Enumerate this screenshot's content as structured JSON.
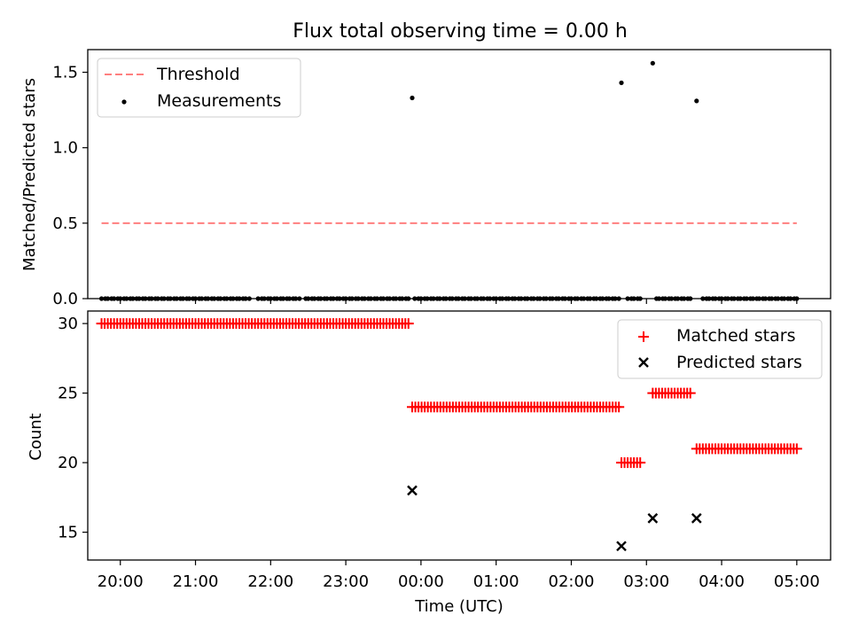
{
  "title": "Flux total observing time = 0.00 h",
  "chart_data": [
    {
      "type": "scatter",
      "ylabel": "Matched/Predicted stars",
      "xlabel": "",
      "ylim": [
        0.0,
        1.65
      ],
      "yticks": [
        "0.0",
        "0.5",
        "1.0",
        "1.5"
      ],
      "xlim": [
        "19:34",
        "05:27"
      ],
      "grid": false,
      "legend_position": "upper-left",
      "series": [
        {
          "name": "Threshold",
          "kind": "line",
          "style": "dashed",
          "color": "#ff7f7f",
          "x_start": "19:45",
          "x_end": "05:00",
          "y": 0.5
        },
        {
          "name": "Measurements",
          "kind": "points",
          "color": "#000000",
          "x": [
            "19:45",
            "19:48",
            "19:50",
            "19:53",
            "19:55",
            "19:58",
            "20:00",
            "20:03",
            "20:05",
            "20:08",
            "20:10",
            "20:13",
            "20:15",
            "20:18",
            "20:20",
            "20:23",
            "20:25",
            "20:28",
            "20:30",
            "20:33",
            "20:35",
            "20:38",
            "20:40",
            "20:43",
            "20:45",
            "20:48",
            "20:50",
            "20:53",
            "20:55",
            "20:58",
            "21:00",
            "21:03",
            "21:05",
            "21:08",
            "21:10",
            "21:13",
            "21:15",
            "21:18",
            "21:20",
            "21:23",
            "21:25",
            "21:28",
            "21:30",
            "21:33",
            "21:35",
            "21:38",
            "21:40",
            "21:43",
            "21:50",
            "21:53",
            "21:55",
            "21:58",
            "22:00",
            "22:03",
            "22:05",
            "22:08",
            "22:10",
            "22:13",
            "22:15",
            "22:18",
            "22:20",
            "22:23",
            "22:28",
            "22:30",
            "22:33",
            "22:35",
            "22:38",
            "22:40",
            "22:43",
            "22:45",
            "22:48",
            "22:50",
            "22:53",
            "22:55",
            "22:58",
            "23:00",
            "23:03",
            "23:05",
            "23:08",
            "23:10",
            "23:13",
            "23:15",
            "23:18",
            "23:20",
            "23:23",
            "23:25",
            "23:28",
            "23:30",
            "23:33",
            "23:35",
            "23:38",
            "23:40",
            "23:43",
            "23:45",
            "23:48",
            "23:50",
            "23:55",
            "23:58",
            "00:00",
            "00:03",
            "00:05",
            "00:08",
            "00:10",
            "00:13",
            "00:15",
            "00:18",
            "00:20",
            "00:23",
            "00:25",
            "00:28",
            "00:30",
            "00:33",
            "00:35",
            "00:38",
            "00:40",
            "00:43",
            "00:45",
            "00:48",
            "00:50",
            "00:53",
            "00:55",
            "00:58",
            "01:00",
            "01:03",
            "01:05",
            "01:08",
            "01:10",
            "01:13",
            "01:15",
            "01:18",
            "01:20",
            "01:23",
            "01:25",
            "01:28",
            "01:30",
            "01:33",
            "01:35",
            "01:38",
            "01:40",
            "01:43",
            "01:45",
            "01:48",
            "01:50",
            "01:53",
            "01:55",
            "01:58",
            "02:00",
            "02:03",
            "02:05",
            "02:08",
            "02:10",
            "02:13",
            "02:15",
            "02:18",
            "02:20",
            "02:23",
            "02:25",
            "02:28",
            "02:30",
            "02:33",
            "02:35",
            "02:38",
            "02:45",
            "02:48",
            "02:50",
            "02:53",
            "02:55",
            "03:08",
            "03:10",
            "03:13",
            "03:15",
            "03:18",
            "03:20",
            "03:23",
            "03:25",
            "03:28",
            "03:30",
            "03:33",
            "03:35",
            "03:45",
            "03:48",
            "03:50",
            "03:53",
            "03:55",
            "03:58",
            "04:00",
            "04:03",
            "04:05",
            "04:08",
            "04:10",
            "04:13",
            "04:15",
            "04:18",
            "04:20",
            "04:23",
            "04:25",
            "04:28",
            "04:30",
            "04:33",
            "04:35",
            "04:38",
            "04:40",
            "04:43",
            "04:45",
            "04:48",
            "04:50",
            "04:53",
            "04:55",
            "04:58",
            "05:00",
            "23:53",
            "02:40",
            "03:05",
            "03:40"
          ],
          "y": [
            0,
            0,
            0,
            0,
            0,
            0,
            0,
            0,
            0,
            0,
            0,
            0,
            0,
            0,
            0,
            0,
            0,
            0,
            0,
            0,
            0,
            0,
            0,
            0,
            0,
            0,
            0,
            0,
            0,
            0,
            0,
            0,
            0,
            0,
            0,
            0,
            0,
            0,
            0,
            0,
            0,
            0,
            0,
            0,
            0,
            0,
            0,
            0,
            0,
            0,
            0,
            0,
            0,
            0,
            0,
            0,
            0,
            0,
            0,
            0,
            0,
            0,
            0,
            0,
            0,
            0,
            0,
            0,
            0,
            0,
            0,
            0,
            0,
            0,
            0,
            0,
            0,
            0,
            0,
            0,
            0,
            0,
            0,
            0,
            0,
            0,
            0,
            0,
            0,
            0,
            0,
            0,
            0,
            0,
            0,
            0,
            0,
            0,
            0,
            0,
            0,
            0,
            0,
            0,
            0,
            0,
            0,
            0,
            0,
            0,
            0,
            0,
            0,
            0,
            0,
            0,
            0,
            0,
            0,
            0,
            0,
            0,
            0,
            0,
            0,
            0,
            0,
            0,
            0,
            0,
            0,
            0,
            0,
            0,
            0,
            0,
            0,
            0,
            0,
            0,
            0,
            0,
            0,
            0,
            0,
            0,
            0,
            0,
            0,
            0,
            0,
            0,
            0,
            0,
            0,
            0,
            0,
            0,
            0,
            0,
            0,
            0,
            0,
            0,
            0,
            0,
            0,
            0,
            0,
            0,
            0,
            0,
            0,
            0,
            0,
            0,
            0,
            0,
            0,
            0,
            0,
            0,
            0,
            0,
            0,
            0,
            0,
            0,
            0,
            0,
            0,
            0,
            0,
            0,
            0,
            0,
            0,
            0,
            0,
            0,
            0,
            0,
            0,
            0,
            0,
            0,
            0,
            0,
            0,
            0,
            1.33,
            1.43,
            1.56,
            1.31
          ]
        }
      ]
    },
    {
      "type": "scatter",
      "ylabel": "Count",
      "xlabel": "Time (UTC)",
      "ylim": [
        13.0,
        30.9
      ],
      "yticks": [
        "15",
        "20",
        "25",
        "30"
      ],
      "xticks": [
        "20:00",
        "21:00",
        "22:00",
        "23:00",
        "00:00",
        "01:00",
        "02:00",
        "03:00",
        "04:00",
        "05:00"
      ],
      "xlim": [
        "19:34",
        "05:27"
      ],
      "grid": false,
      "legend_position": "upper-right",
      "series": [
        {
          "name": "Matched stars",
          "marker": "+",
          "color": "#ff0000",
          "segments": [
            {
              "x_start": "19:45",
              "x_end": "23:50",
              "y": 30
            },
            {
              "x_start": "23:53",
              "x_end": "02:38",
              "y": 24
            },
            {
              "x_start": "02:40",
              "x_end": "02:55",
              "y": 20
            },
            {
              "x_start": "03:05",
              "x_end": "03:35",
              "y": 25
            },
            {
              "x_start": "03:40",
              "x_end": "05:00",
              "y": 21
            }
          ]
        },
        {
          "name": "Predicted stars",
          "marker": "x",
          "color": "#000000",
          "x": [
            "23:53",
            "02:40",
            "03:05",
            "03:40"
          ],
          "y": [
            18,
            14,
            16,
            16
          ]
        }
      ]
    }
  ]
}
